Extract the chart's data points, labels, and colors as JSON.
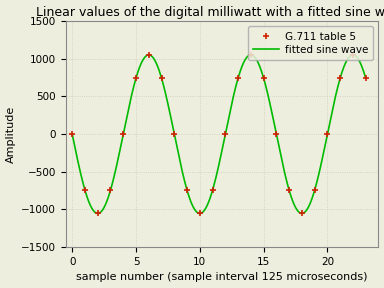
{
  "title": "Linear values of the digital milliwatt with a fitted sine wave",
  "xlabel": "sample number (sample interval 125 microseconds)",
  "ylabel": "Amplitude",
  "xlim": [
    -0.5,
    24.0
  ],
  "ylim": [
    -1500,
    1500
  ],
  "yticks": [
    -1500,
    -1000,
    -500,
    0,
    500,
    1000,
    1500
  ],
  "xticks": [
    0,
    5,
    10,
    15,
    20
  ],
  "background_color": "#eeeedf",
  "grid_color": "#ccccbb",
  "sine_color": "#00bb00",
  "point_color": "#cc2200",
  "amplitude": 1052.0,
  "frequency_hz": 1000,
  "sample_interval_us": 125,
  "num_samples": 24,
  "legend_label_points": "G.711 table 5",
  "legend_label_line": "fitted sine wave",
  "title_fontsize": 9,
  "label_fontsize": 8,
  "tick_fontsize": 7.5,
  "legend_fontsize": 7.5
}
